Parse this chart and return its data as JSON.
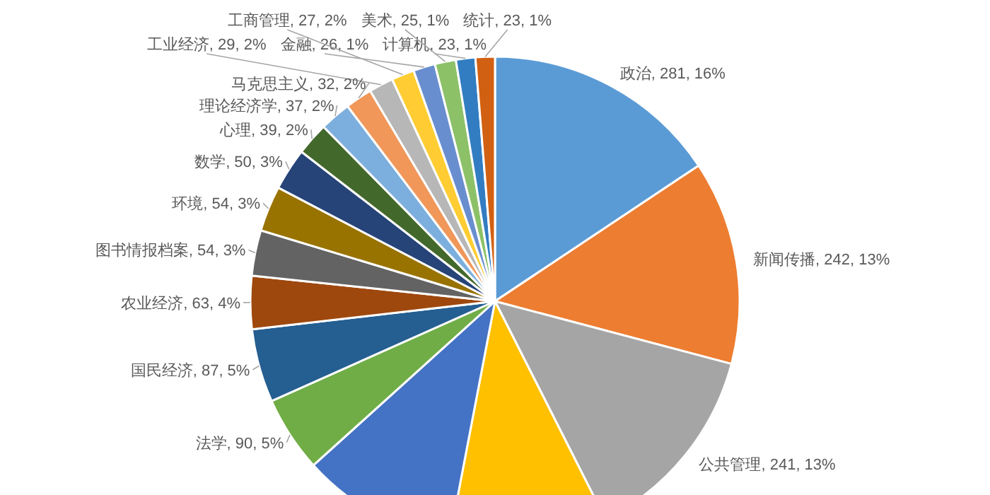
{
  "chart_data": {
    "type": "pie",
    "categories": [
      "政治",
      "新闻传播",
      "公共管理",
      null,
      null,
      "法学",
      "国民经济",
      "农业经济",
      "图书情报档案",
      "环境",
      "数学",
      "心理",
      "理论经济学",
      "马克思主义",
      "工业经济",
      "工商管理",
      "金融",
      "美术",
      "计算机",
      "统计"
    ],
    "values": [
      281,
      242,
      241,
      188,
      185,
      90,
      87,
      63,
      54,
      54,
      50,
      39,
      37,
      32,
      29,
      27,
      26,
      25,
      23,
      23
    ],
    "data_labels": true,
    "value_labels": [
      ", 281, 16%",
      ", 242, 13%",
      ", 241, 13%",
      null,
      null,
      ", 90, 5%",
      ", 87, 5%",
      ", 63, 4%",
      ", 54, 3%",
      ", 54, 3%",
      ", 50, 3%",
      ", 39, 2%",
      ", 37, 2%",
      ", 32, 2%",
      ", 29, 2%",
      ", 27, 2%",
      ", 26, 1%",
      ", 25, 1%",
      ", 23, 1%",
      ", 23, 1%"
    ],
    "colors": [
      "#5b9bd5",
      "#ed7d31",
      "#a5a5a5",
      "#ffc000",
      "#4472c4",
      "#70ad47",
      "#255e91",
      "#9e480e",
      "#636363",
      "#997300",
      "#264478",
      "#43682b",
      "#7cafdd",
      "#f1975a",
      "#b7b7b7",
      "#ffcd33",
      "#698ed0",
      "#8cc168",
      "#327dc2",
      "#d26012"
    ]
  }
}
